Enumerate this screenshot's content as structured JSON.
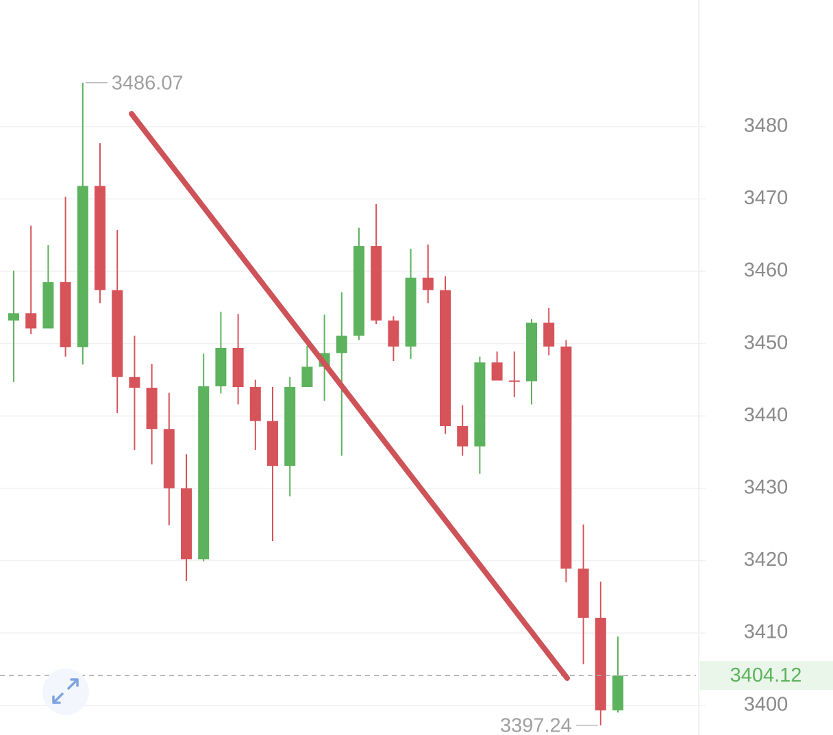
{
  "chart_data": {
    "type": "candlestick",
    "categories": [
      null,
      null,
      null,
      null,
      null,
      null,
      null,
      null,
      null,
      null,
      null,
      null,
      null,
      null,
      null,
      null,
      null,
      null,
      null,
      null,
      null,
      null,
      null,
      null,
      null,
      null,
      null,
      null,
      null,
      null,
      null,
      null,
      null,
      null,
      null,
      null
    ],
    "open": [
      3453.2,
      3454.2,
      3452.1,
      3458.5,
      3449.5,
      3471.8,
      3457.4,
      3445.4,
      3443.9,
      3438.2,
      3430.0,
      3420.2,
      3444.1,
      3449.4,
      3444.0,
      3439.3,
      3433.1,
      3444.0,
      3446.8,
      3448.7,
      3451.1,
      3463.5,
      3453.2,
      3449.6,
      3459.1,
      3457.4,
      3438.6,
      3435.8,
      3447.4,
      3444.9,
      3444.8,
      3452.9,
      3449.6,
      3418.9,
      3412.1,
      3399.3
    ],
    "high": [
      3460.1,
      3466.3,
      3463.6,
      3470.3,
      3486.07,
      3477.7,
      3465.7,
      3451.1,
      3447.2,
      3443.2,
      3434.7,
      3448.6,
      3454.4,
      3454.1,
      3445.0,
      3444.0,
      3445.4,
      3449.7,
      3454.0,
      3457.1,
      3466.0,
      3469.3,
      3453.8,
      3463.1,
      3463.7,
      3459.3,
      3441.5,
      3448.2,
      3448.9,
      3448.9,
      3453.4,
      3454.9,
      3450.5,
      3425.0,
      3417.1,
      3409.5
    ],
    "low": [
      3444.7,
      3451.3,
      3452.1,
      3448.2,
      3447.1,
      3455.6,
      3440.4,
      3435.3,
      3433.3,
      3424.9,
      3417.2,
      3419.9,
      3443.1,
      3441.6,
      3435.3,
      3422.7,
      3428.9,
      3444.0,
      3442.1,
      3434.5,
      3450.5,
      3452.7,
      3447.6,
      3447.9,
      3455.6,
      3437.5,
      3434.5,
      3432.0,
      3444.9,
      3442.6,
      3441.6,
      3448.4,
      3417.0,
      3405.7,
      3397.24,
      3399.0
    ],
    "close": [
      3454.2,
      3452.1,
      3458.5,
      3449.5,
      3471.8,
      3457.4,
      3445.4,
      3443.9,
      3438.2,
      3430.0,
      3420.2,
      3444.1,
      3449.4,
      3444.0,
      3439.3,
      3433.1,
      3444.0,
      3446.8,
      3448.7,
      3451.1,
      3463.5,
      3453.2,
      3449.6,
      3459.1,
      3457.4,
      3438.6,
      3435.8,
      3447.4,
      3444.9,
      3444.8,
      3452.9,
      3449.6,
      3418.9,
      3412.1,
      3399.3,
      3404.12
    ],
    "up_color": "#5cb25d",
    "down_color": "#d6535a",
    "high_label": "3486.07",
    "low_label": "3397.24",
    "last_price": {
      "value": 3404.12,
      "label": "3404.12"
    },
    "ylim": [
      3395.9,
      3497.5
    ],
    "yticks": [
      3400,
      3410,
      3420,
      3430,
      3440,
      3450,
      3460,
      3470,
      3480
    ],
    "grid": true
  }
}
